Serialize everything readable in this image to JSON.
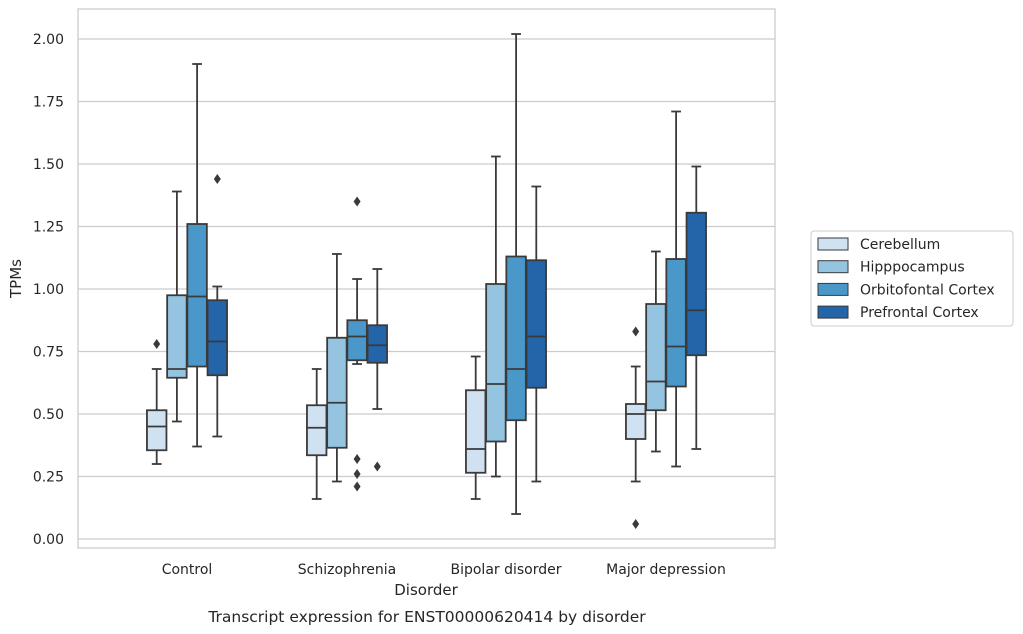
{
  "chart_data": {
    "type": "box",
    "title": "",
    "caption": "Transcript expression for ENST00000620414 by disorder",
    "xlabel": "Disorder",
    "ylabel": "TPMs",
    "ylim": [
      -0.03,
      2.12
    ],
    "yticks": [
      "0.00",
      "0.25",
      "0.50",
      "0.75",
      "1.00",
      "1.25",
      "1.50",
      "1.75",
      "2.00"
    ],
    "grid": true,
    "legend_position": "right",
    "categories": [
      "Control",
      "Schizophrenia",
      "Bipolar disorder",
      "Major depression"
    ],
    "series": [
      {
        "name": "Cerebellum",
        "color": "#d0e1f2",
        "boxes": [
          {
            "whislo": 0.3,
            "q1": 0.355,
            "med": 0.45,
            "q3": 0.515,
            "whishi": 0.68,
            "fliers": [
              0.78
            ]
          },
          {
            "whislo": 0.16,
            "q1": 0.335,
            "med": 0.445,
            "q3": 0.535,
            "whishi": 0.68,
            "fliers": []
          },
          {
            "whislo": 0.16,
            "q1": 0.265,
            "med": 0.36,
            "q3": 0.595,
            "whishi": 0.73,
            "fliers": []
          },
          {
            "whislo": 0.23,
            "q1": 0.4,
            "med": 0.5,
            "q3": 0.54,
            "whishi": 0.69,
            "fliers": [
              0.83,
              0.06
            ]
          }
        ]
      },
      {
        "name": "Hipppocampus",
        "color": "#94c4df",
        "boxes": [
          {
            "whislo": 0.47,
            "q1": 0.645,
            "med": 0.68,
            "q3": 0.975,
            "whishi": 1.39,
            "fliers": []
          },
          {
            "whislo": 0.23,
            "q1": 0.365,
            "med": 0.545,
            "q3": 0.805,
            "whishi": 1.14,
            "fliers": []
          },
          {
            "whislo": 0.25,
            "q1": 0.39,
            "med": 0.62,
            "q3": 1.02,
            "whishi": 1.53,
            "fliers": []
          },
          {
            "whislo": 0.35,
            "q1": 0.515,
            "med": 0.63,
            "q3": 0.94,
            "whishi": 1.15,
            "fliers": []
          }
        ]
      },
      {
        "name": "Orbitofontal Cortex",
        "color": "#4a98c9",
        "boxes": [
          {
            "whislo": 0.37,
            "q1": 0.69,
            "med": 0.97,
            "q3": 1.26,
            "whishi": 1.9,
            "fliers": []
          },
          {
            "whislo": 0.7,
            "q1": 0.715,
            "med": 0.81,
            "q3": 0.875,
            "whishi": 1.04,
            "fliers": [
              1.35,
              0.32,
              0.26,
              0.21
            ]
          },
          {
            "whislo": 0.1,
            "q1": 0.475,
            "med": 0.68,
            "q3": 1.13,
            "whishi": 2.02,
            "fliers": []
          },
          {
            "whislo": 0.29,
            "q1": 0.61,
            "med": 0.77,
            "q3": 1.12,
            "whishi": 1.71,
            "fliers": []
          }
        ]
      },
      {
        "name": "Prefrontal Cortex",
        "color": "#2464a8",
        "boxes": [
          {
            "whislo": 0.41,
            "q1": 0.655,
            "med": 0.79,
            "q3": 0.955,
            "whishi": 1.01,
            "fliers": [
              1.44
            ]
          },
          {
            "whislo": 0.52,
            "q1": 0.705,
            "med": 0.775,
            "q3": 0.855,
            "whishi": 1.08,
            "fliers": [
              0.29
            ]
          },
          {
            "whislo": 0.23,
            "q1": 0.605,
            "med": 0.81,
            "q3": 1.115,
            "whishi": 1.41,
            "fliers": []
          },
          {
            "whislo": 0.36,
            "q1": 0.735,
            "med": 0.915,
            "q3": 1.305,
            "whishi": 1.49,
            "fliers": []
          }
        ]
      }
    ]
  }
}
